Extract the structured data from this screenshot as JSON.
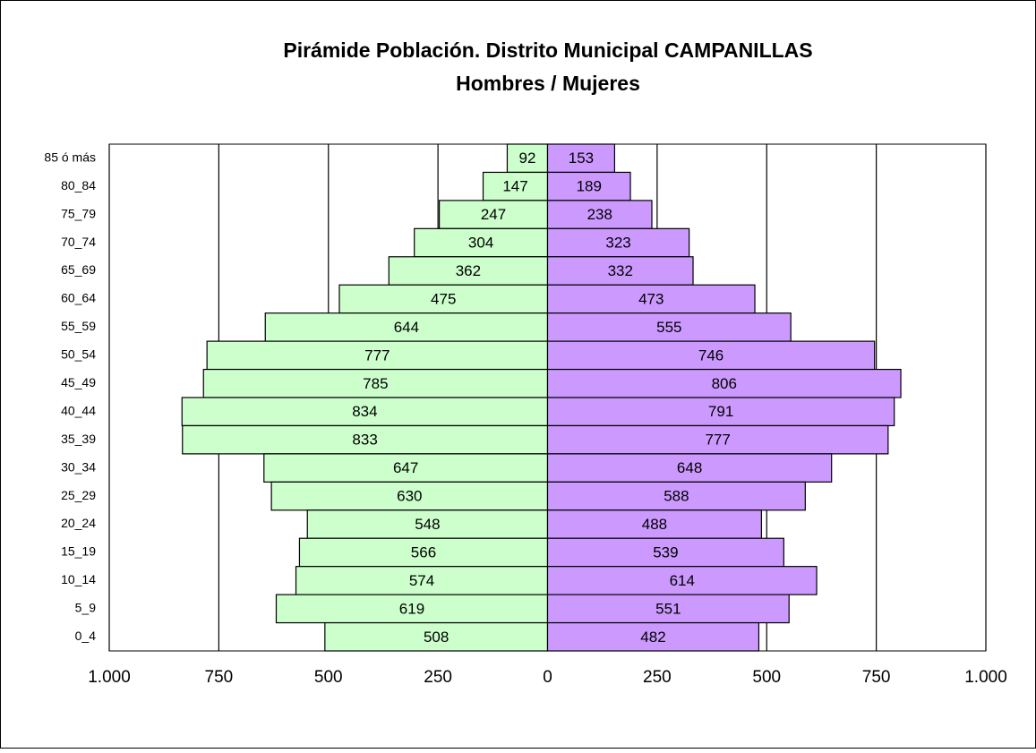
{
  "chart_data": {
    "type": "bar",
    "orientation": "horizontal",
    "title": "Pirámide Población. Distrito Municipal CAMPANILLAS",
    "subtitle": "Hombres / Mujeres",
    "categories": [
      "85 ó más",
      "80_84",
      "75_79",
      "70_74",
      "65_69",
      "60_64",
      "55_59",
      "50_54",
      "45_49",
      "40_44",
      "35_39",
      "30_34",
      "25_29",
      "20_24",
      "15_19",
      "10_14",
      "5_9",
      "0_4"
    ],
    "series": [
      {
        "color": "#ccffcc",
        "values": [
          -92,
          -147,
          -247,
          -304,
          -362,
          -475,
          -644,
          -777,
          -785,
          -834,
          -833,
          -647,
          -630,
          -548,
          -566,
          -574,
          -619,
          -508
        ],
        "value_labels": [
          "92",
          "147",
          "247",
          "304",
          "362",
          "475",
          "644",
          "777",
          "785",
          "834",
          "833",
          "647",
          "630",
          "548",
          "566",
          "574",
          "619",
          "508"
        ]
      },
      {
        "color": "#cc99ff",
        "values": [
          153,
          189,
          238,
          323,
          332,
          473,
          555,
          746,
          806,
          791,
          777,
          648,
          588,
          488,
          539,
          614,
          551,
          482
        ]
      }
    ],
    "xlim": [
      -1000,
      1000
    ],
    "xticks": [
      {
        "value": -1000,
        "label": "1.000"
      },
      {
        "value": -750,
        "label": "750"
      },
      {
        "value": -500,
        "label": "500"
      },
      {
        "value": -250,
        "label": "250"
      },
      0,
      250,
      500,
      750,
      {
        "value": 1000,
        "label": "1.000"
      }
    ],
    "grid": true
  }
}
